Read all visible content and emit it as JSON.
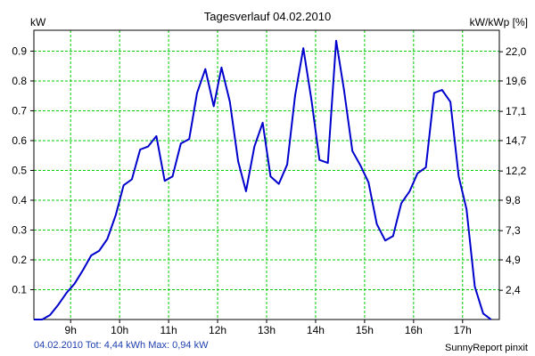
{
  "header": {
    "title": "Tagesverlauf 04.02.2010",
    "unit_left": "kW",
    "unit_right": "kW/kWp [%]"
  },
  "footer": {
    "summary": "04.02.2010 Tot: 4,44 kWh Max: 0,94 kW",
    "brand": "SunnyReport pinxit"
  },
  "colors": {
    "line": "#0000cc",
    "grid": "#00cc00",
    "axis": "#000000",
    "summary_text": "#1f3fb0"
  },
  "chart_data": {
    "type": "line",
    "title": "Tagesverlauf 04.02.2010",
    "ylabel": "kW",
    "ylabel_right": "kW/kWp [%]",
    "xlim": [
      8.25,
      17.75
    ],
    "ylim": [
      0,
      0.97
    ],
    "grid": true,
    "x_ticks": [
      {
        "value": 9,
        "label": "9h"
      },
      {
        "value": 10,
        "label": "10h"
      },
      {
        "value": 11,
        "label": "11h"
      },
      {
        "value": 12,
        "label": "12h"
      },
      {
        "value": 13,
        "label": "13h"
      },
      {
        "value": 14,
        "label": "14h"
      },
      {
        "value": 15,
        "label": "15h"
      },
      {
        "value": 16,
        "label": "16h"
      },
      {
        "value": 17,
        "label": "17h"
      }
    ],
    "y_ticks": [
      {
        "value": 0.1,
        "label": "0.1"
      },
      {
        "value": 0.2,
        "label": "0.2"
      },
      {
        "value": 0.3,
        "label": "0.3"
      },
      {
        "value": 0.4,
        "label": "0.4"
      },
      {
        "value": 0.5,
        "label": "0.5"
      },
      {
        "value": 0.6,
        "label": "0.6"
      },
      {
        "value": 0.7,
        "label": "0.7"
      },
      {
        "value": 0.8,
        "label": "0.8"
      },
      {
        "value": 0.9,
        "label": "0.9"
      }
    ],
    "y2_ticks": [
      {
        "value": 0.098,
        "label": "2,4"
      },
      {
        "value": 0.2,
        "label": "4,9"
      },
      {
        "value": 0.298,
        "label": "7,3"
      },
      {
        "value": 0.4,
        "label": "9,8"
      },
      {
        "value": 0.498,
        "label": "12,2"
      },
      {
        "value": 0.6,
        "label": "14,7"
      },
      {
        "value": 0.698,
        "label": "17,1"
      },
      {
        "value": 0.8,
        "label": "19,6"
      },
      {
        "value": 0.898,
        "label": "22,0"
      }
    ],
    "series": [
      {
        "x": [
          8.25,
          8.42,
          8.58,
          8.75,
          8.92,
          9.08,
          9.25,
          9.42,
          9.58,
          9.75,
          9.92,
          10.08,
          10.25,
          10.42,
          10.58,
          10.75,
          10.92,
          11.08,
          11.25,
          11.42,
          11.58,
          11.75,
          11.92,
          12.08,
          12.25,
          12.42,
          12.58,
          12.75,
          12.92,
          13.08,
          13.25,
          13.42,
          13.58,
          13.75,
          13.92,
          14.08,
          14.25,
          14.42,
          14.58,
          14.75,
          14.92,
          15.08,
          15.25,
          15.42,
          15.58,
          15.75,
          15.92,
          16.08,
          16.25,
          16.42,
          16.58,
          16.75,
          16.92,
          17.08,
          17.25,
          17.42,
          17.58
        ],
        "y": [
          0.0,
          0.0,
          0.015,
          0.05,
          0.09,
          0.12,
          0.165,
          0.215,
          0.23,
          0.27,
          0.35,
          0.45,
          0.47,
          0.57,
          0.58,
          0.615,
          0.465,
          0.48,
          0.59,
          0.605,
          0.76,
          0.84,
          0.715,
          0.845,
          0.73,
          0.53,
          0.43,
          0.58,
          0.66,
          0.48,
          0.455,
          0.52,
          0.75,
          0.91,
          0.73,
          0.535,
          0.525,
          0.935,
          0.77,
          0.565,
          0.515,
          0.46,
          0.32,
          0.265,
          0.28,
          0.39,
          0.43,
          0.49,
          0.51,
          0.76,
          0.77,
          0.73,
          0.48,
          0.37,
          0.11,
          0.02,
          0.0
        ]
      }
    ]
  }
}
